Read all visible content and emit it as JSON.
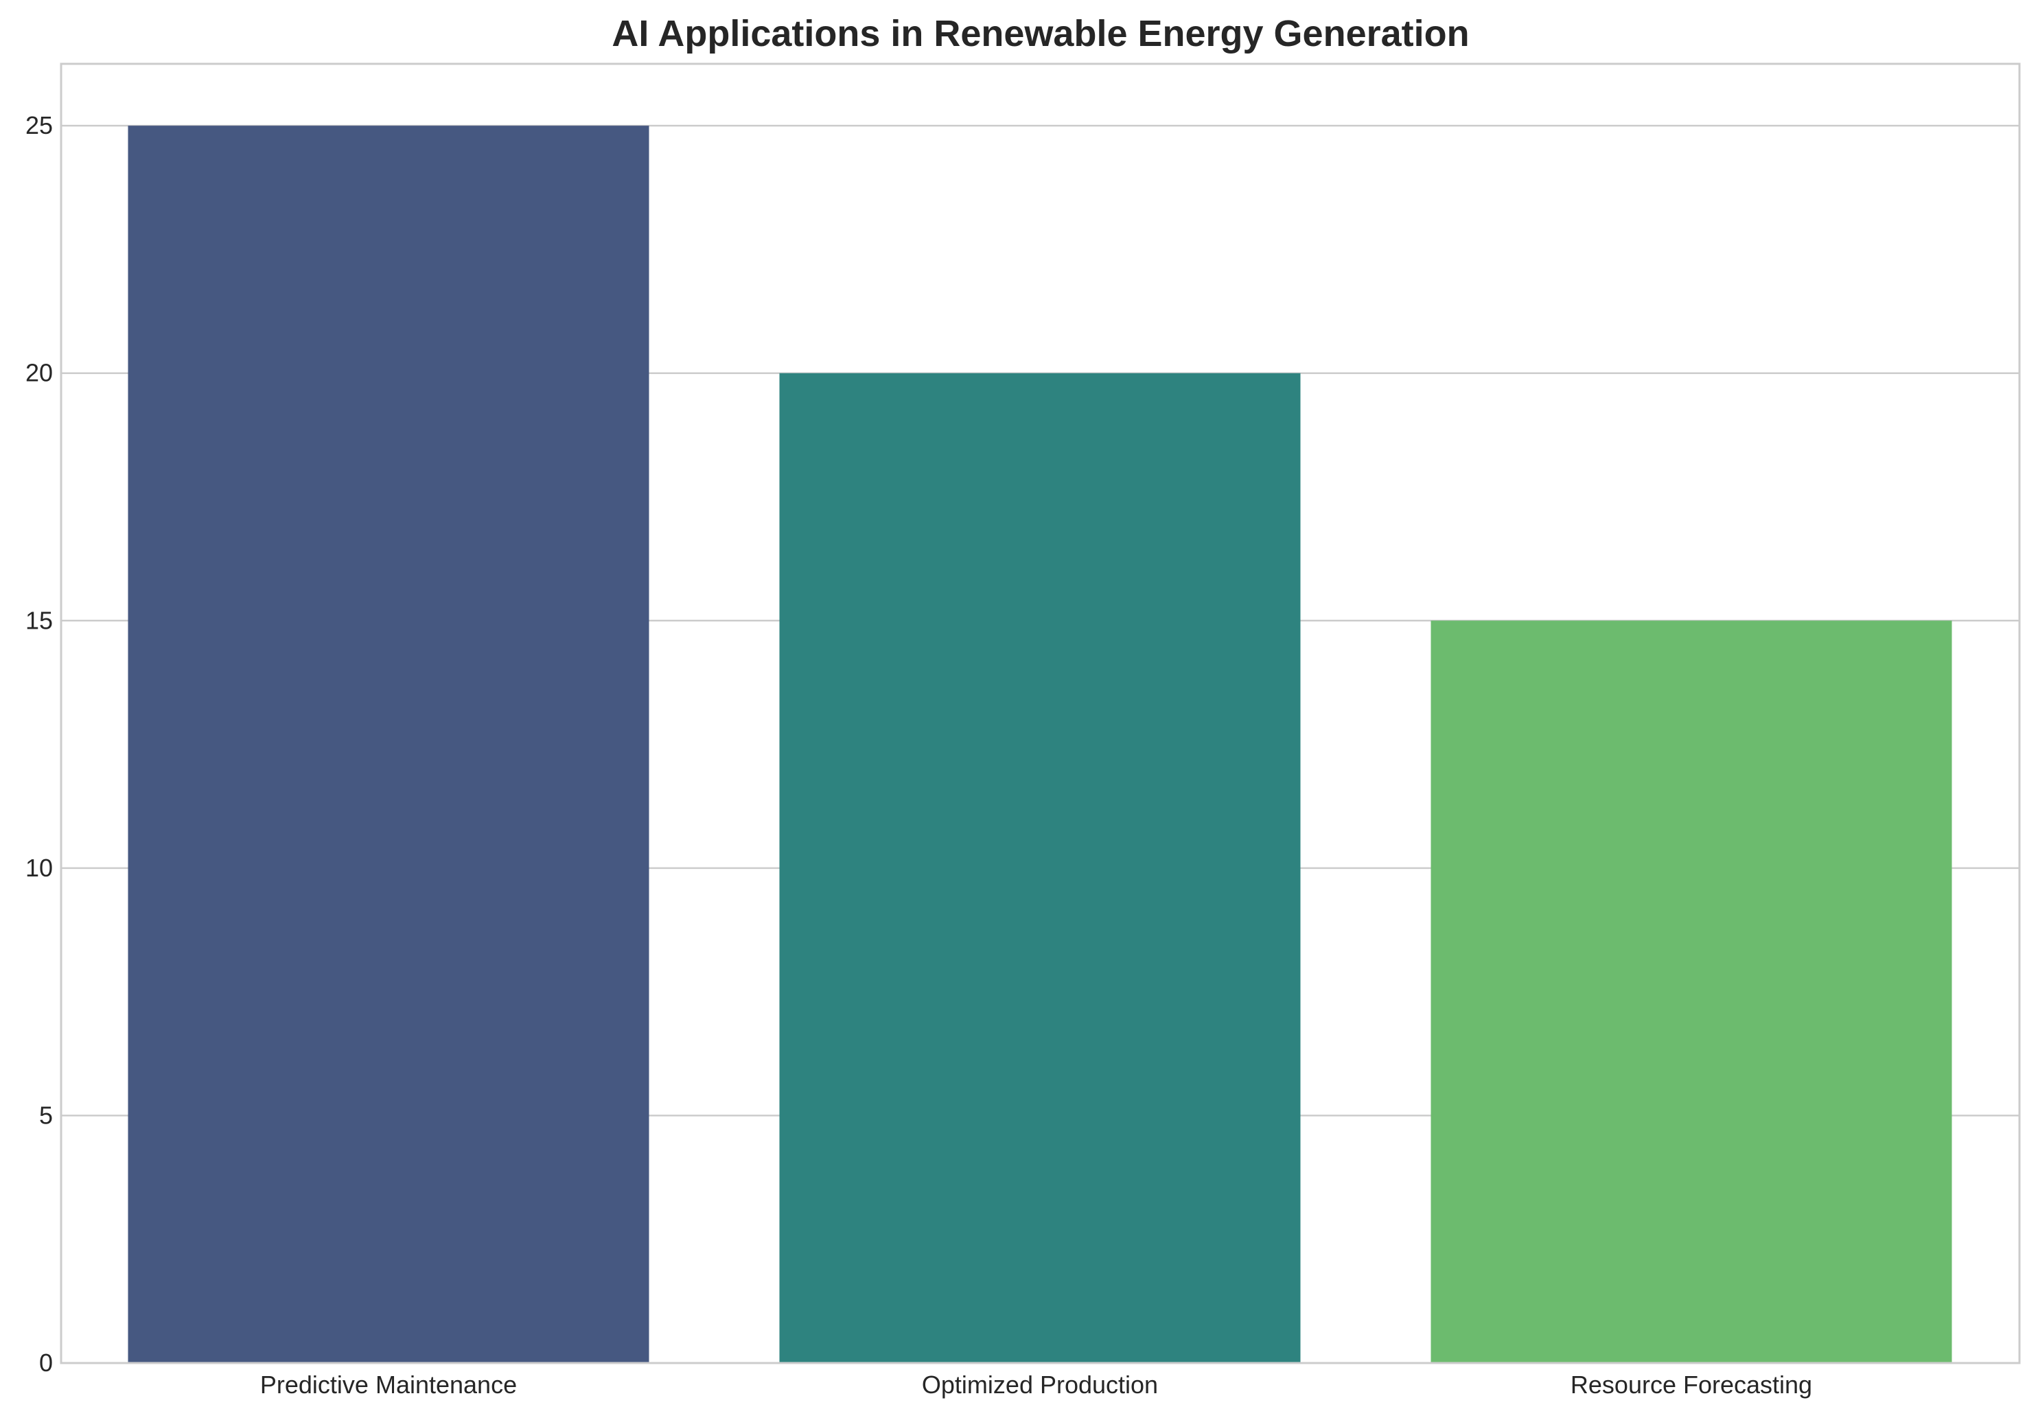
{
  "chart_data": {
    "type": "bar",
    "title": "AI Applications in Renewable Energy Generation",
    "xlabel": "",
    "ylabel": "",
    "categories": [
      "Predictive Maintenance",
      "Optimized Production",
      "Resource Forecasting"
    ],
    "values": [
      25,
      20,
      15
    ],
    "colors": [
      "#465881",
      "#2e837f",
      "#6cbb6e"
    ],
    "ylim": [
      0,
      26.25
    ],
    "yticks": [
      0,
      5,
      10,
      15,
      20,
      25
    ],
    "grid": "horizontal",
    "legend": "none"
  },
  "style": {
    "grid_color": "#cccccc",
    "frame_color": "#cccccc",
    "text_color": "#262626",
    "background": "#ffffff"
  }
}
